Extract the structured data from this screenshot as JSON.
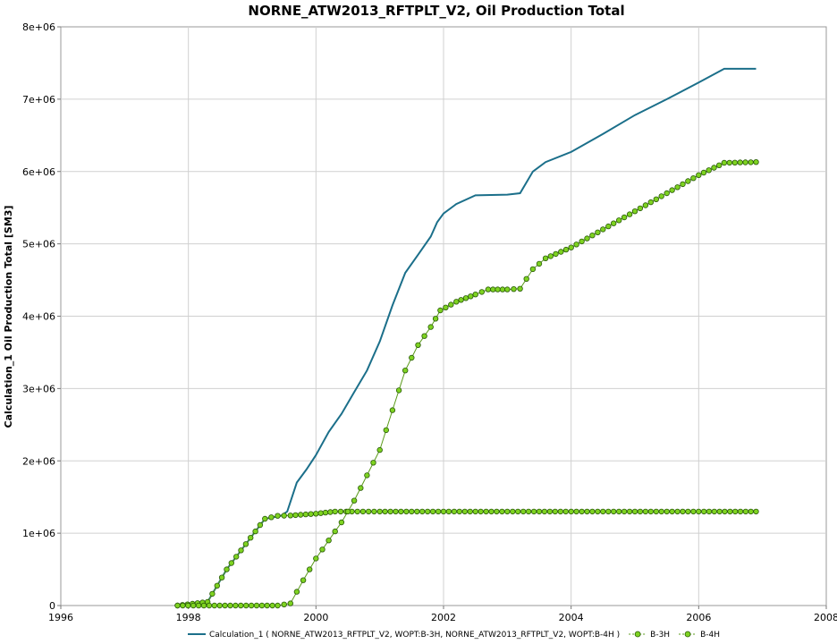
{
  "chart_data": {
    "type": "line",
    "title": "NORNE_ATW2013_RFTPLT_V2, Oil Production Total",
    "xlabel": "",
    "ylabel": "Calculation_1 Oil Production Total [SM3]",
    "xlim": [
      1996,
      2008
    ],
    "ylim": [
      0,
      8000000
    ],
    "x_ticks": [
      "1996",
      "1998",
      "2000",
      "2002",
      "2004",
      "2006",
      "2008"
    ],
    "y_ticks": [
      "0",
      "1e+06",
      "2e+06",
      "3e+06",
      "4e+06",
      "5e+06",
      "6e+06",
      "7e+06",
      "8e+06"
    ],
    "grid": true,
    "legend_position": "bottom",
    "series": [
      {
        "name": "Calculation_1 ( NORNE_ATW2013_RFTPLT_V2, WOPT:B-3H, NORNE_ATW2013_RFTPLT_V2, WOPT:B-4H )",
        "color": "#1b6f8a",
        "marker": "none",
        "x": [
          1997.83,
          1998.3,
          1998.6,
          1998.9,
          1999.2,
          1999.45,
          1999.55,
          1999.7,
          1999.85,
          2000.0,
          2000.2,
          2000.4,
          2000.6,
          2000.8,
          2001.0,
          2001.2,
          2001.4,
          2001.6,
          2001.8,
          2001.9,
          2002.0,
          2002.2,
          2002.5,
          2003.0,
          2003.2,
          2003.4,
          2003.6,
          2004.0,
          2004.5,
          2005.0,
          2005.5,
          2006.0,
          2006.4,
          2006.9
        ],
        "values": [
          0,
          50000,
          500000,
          850000,
          1200000,
          1240000,
          1300000,
          1700000,
          1880000,
          2080000,
          2400000,
          2650000,
          2950000,
          3250000,
          3650000,
          4150000,
          4600000,
          4850000,
          5100000,
          5300000,
          5420000,
          5550000,
          5670000,
          5680000,
          5700000,
          6000000,
          6130000,
          6270000,
          6520000,
          6780000,
          7000000,
          7230000,
          7420000,
          7420000
        ]
      },
      {
        "name": "B-3H",
        "color": "#7ed321",
        "marker": "circle",
        "x": [
          1997.83,
          1998.3,
          1998.6,
          1998.9,
          1999.2,
          1999.4,
          1999.6,
          2000.0,
          2000.3,
          2001.0,
          2002.0,
          2003.0,
          2004.0,
          2005.0,
          2006.0,
          2006.9
        ],
        "values": [
          0,
          50000,
          500000,
          850000,
          1200000,
          1240000,
          1245000,
          1270000,
          1300000,
          1300000,
          1300000,
          1300000,
          1300000,
          1300000,
          1300000,
          1300000
        ]
      },
      {
        "name": "B-4H",
        "color": "#7ed321",
        "marker": "circle",
        "x": [
          1997.83,
          1999.4,
          1999.6,
          1999.8,
          2000.0,
          2000.2,
          2000.4,
          2000.6,
          2000.8,
          2001.0,
          2001.2,
          2001.4,
          2001.6,
          2001.8,
          2001.95,
          2002.2,
          2002.5,
          2002.7,
          2003.0,
          2003.2,
          2003.4,
          2003.6,
          2004.0,
          2004.5,
          2005.0,
          2005.5,
          2006.0,
          2006.4,
          2006.9
        ],
        "values": [
          0,
          0,
          30000,
          350000,
          650000,
          900000,
          1150000,
          1450000,
          1800000,
          2150000,
          2700000,
          3250000,
          3600000,
          3850000,
          4080000,
          4200000,
          4300000,
          4370000,
          4370000,
          4380000,
          4650000,
          4800000,
          4950000,
          5200000,
          5450000,
          5700000,
          5950000,
          6120000,
          6130000
        ]
      }
    ]
  }
}
